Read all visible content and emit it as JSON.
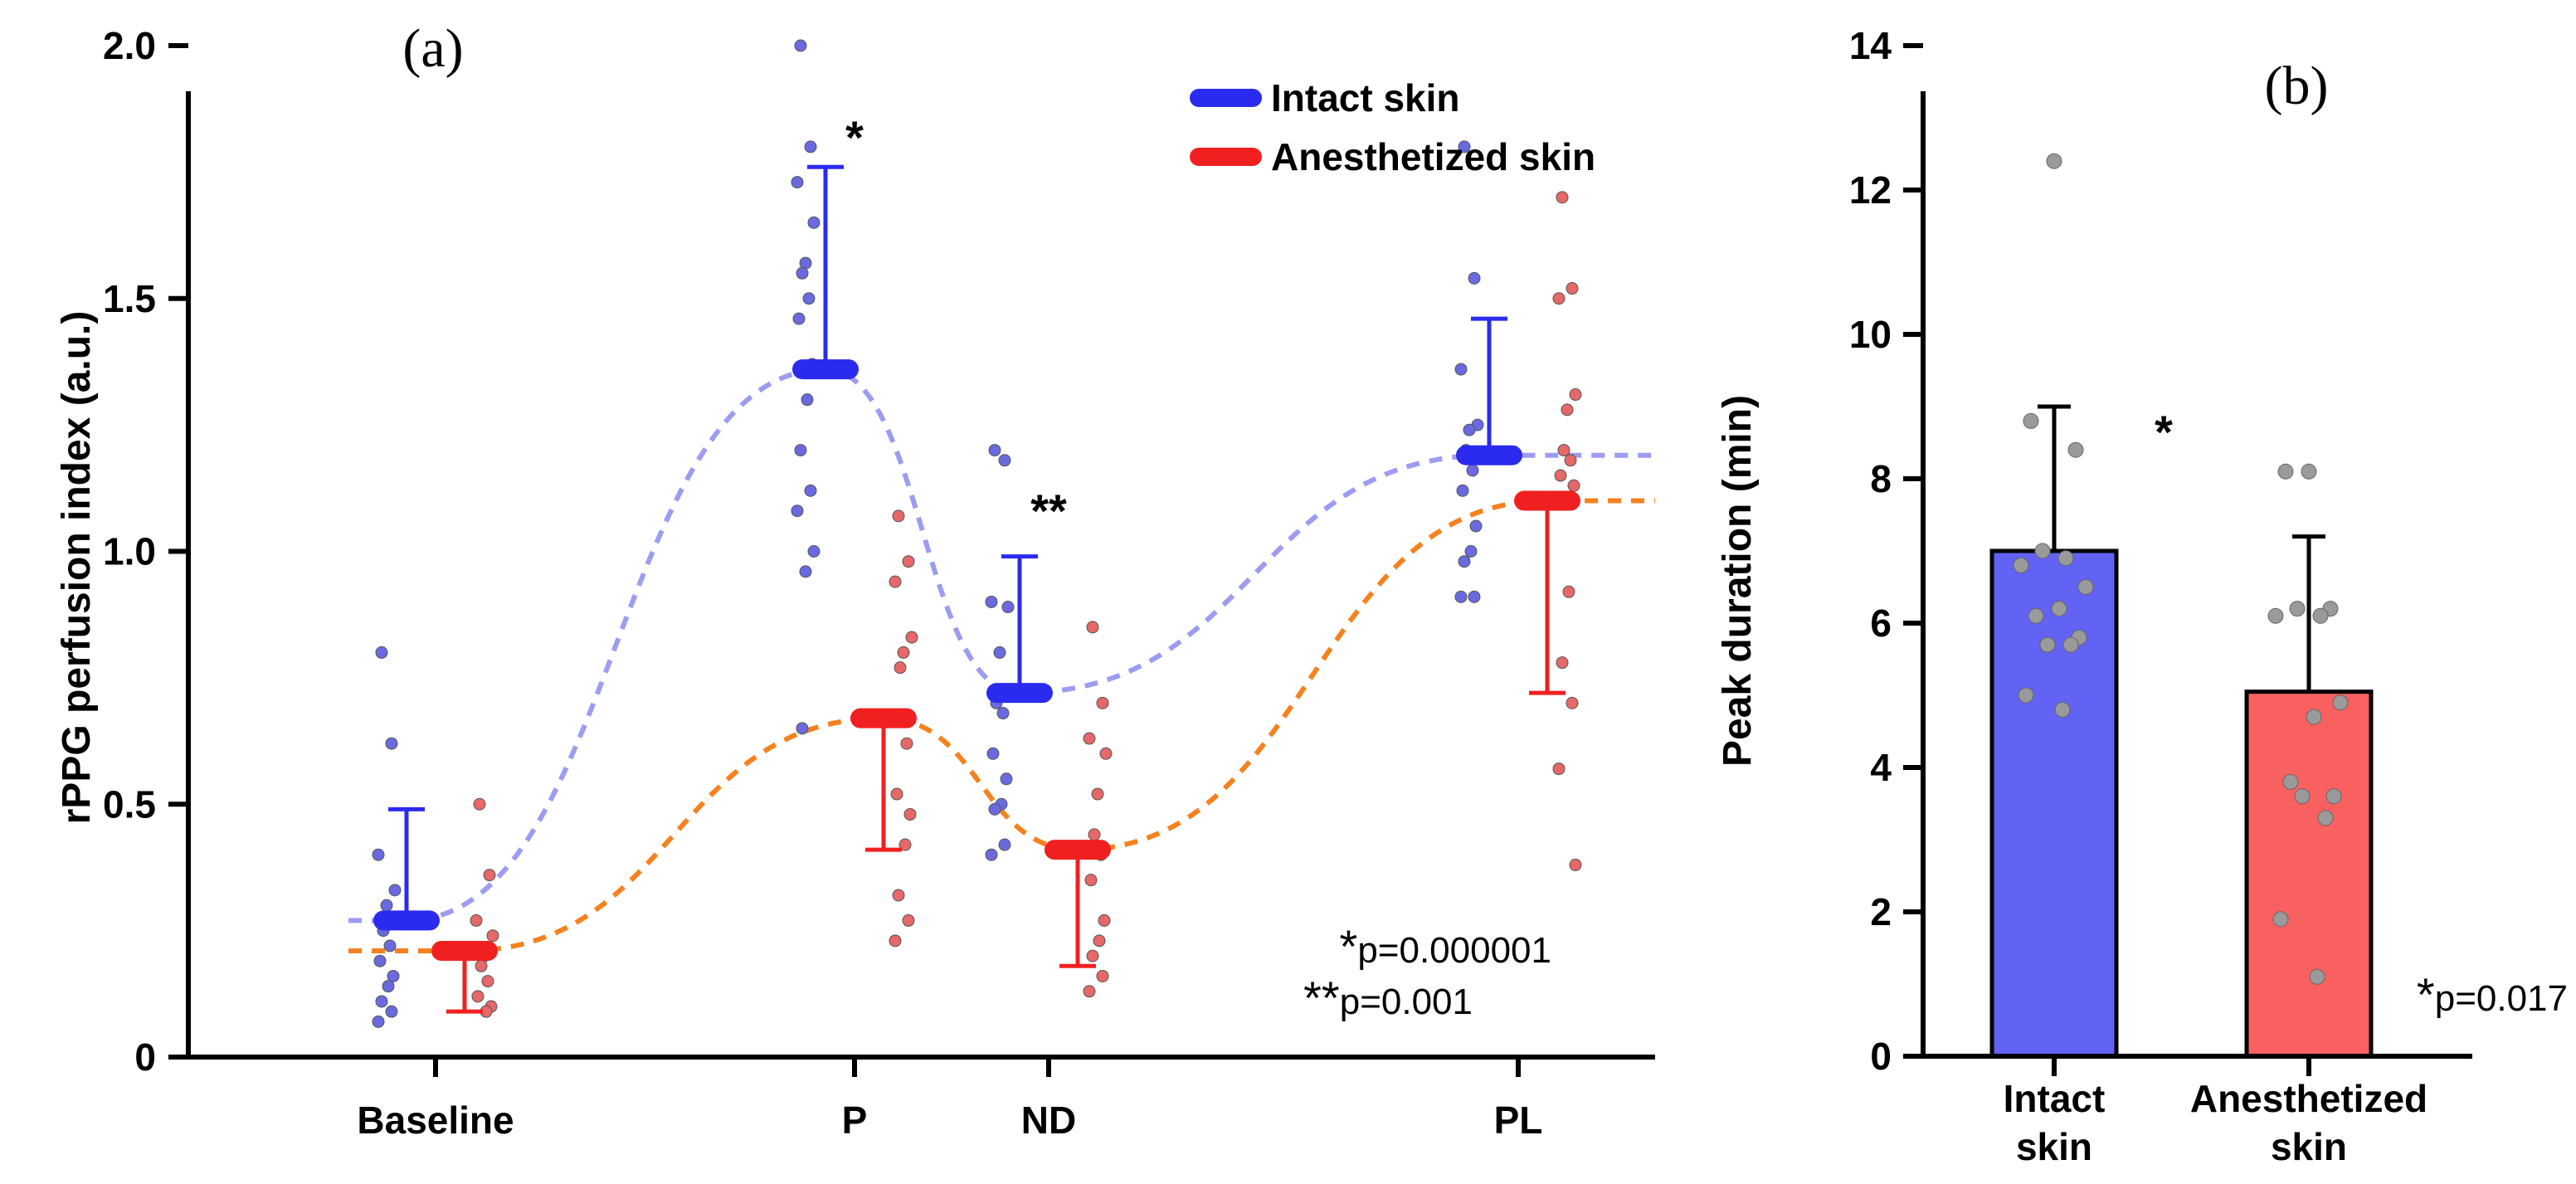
{
  "colors": {
    "intact": "#2b2bf0",
    "anesthetized": "#f02020",
    "intact_dot": "#6a6ae0",
    "anesthetized_dot": "#e66868",
    "intact_fit": "#9c9cf2",
    "anesthetized_fit": "#f5821f",
    "intact_bar": "#6262f5",
    "anesthetized_bar": "#f96161",
    "bar_dot": "#9a9a9a"
  },
  "chart_data": [
    {
      "panel": "(a)",
      "type": "scatter",
      "ylabel": "rPPG perfusion index (a.u.)",
      "ylim": [
        0,
        2.0
      ],
      "yticks": [
        "0",
        "0.5",
        "1.0",
        "1.5",
        "2.0"
      ],
      "categories": [
        "Baseline",
        "P",
        "ND",
        "PL"
      ],
      "legend": {
        "position": "top-right",
        "entries": [
          "Intact skin",
          "Anesthetized skin"
        ]
      },
      "series": [
        {
          "name": "Intact skin",
          "mean": [
            0.27,
            1.36,
            0.72,
            1.19
          ],
          "err_upper": [
            0.49,
            1.76,
            0.99,
            1.46
          ],
          "err_lower": [
            null,
            null,
            null,
            null
          ],
          "points": [
            [
              0.8,
              0.62,
              0.4,
              0.33,
              0.3,
              0.25,
              0.22,
              0.19,
              0.16,
              0.14,
              0.11,
              0.09,
              0.07
            ],
            [
              2.0,
              1.8,
              1.73,
              1.65,
              1.57,
              1.55,
              1.5,
              1.46,
              1.37,
              1.3,
              1.2,
              1.12,
              1.08,
              1.0,
              0.96,
              0.65
            ],
            [
              1.2,
              1.18,
              0.9,
              0.89,
              0.8,
              0.7,
              0.68,
              0.6,
              0.55,
              0.5,
              0.49,
              0.42,
              0.4
            ],
            [
              1.8,
              1.54,
              1.36,
              1.25,
              1.24,
              1.2,
              1.16,
              1.12,
              1.05,
              1.0,
              0.98,
              0.91,
              0.91
            ]
          ]
        },
        {
          "name": "Anesthetized skin",
          "mean": [
            0.21,
            0.67,
            0.41,
            1.1
          ],
          "err_upper": [
            null,
            null,
            null,
            null
          ],
          "err_lower": [
            0.09,
            0.41,
            0.18,
            0.72
          ],
          "points": [
            [
              0.5,
              0.36,
              0.27,
              0.24,
              0.2,
              0.18,
              0.15,
              0.12,
              0.1,
              0.09
            ],
            [
              1.07,
              0.98,
              0.94,
              0.83,
              0.8,
              0.77,
              0.62,
              0.52,
              0.48,
              0.42,
              0.32,
              0.27,
              0.23
            ],
            [
              0.85,
              0.7,
              0.63,
              0.6,
              0.52,
              0.44,
              0.4,
              0.35,
              0.27,
              0.23,
              0.2,
              0.16,
              0.13
            ],
            [
              1.7,
              1.52,
              1.5,
              1.31,
              1.28,
              1.2,
              1.18,
              1.15,
              1.13,
              0.92,
              0.78,
              0.7,
              0.57,
              0.38
            ]
          ]
        }
      ],
      "annotations": [
        {
          "text": "*",
          "category": "P",
          "y": 1.92
        },
        {
          "text": "**",
          "category": "ND",
          "y": 1.12
        }
      ],
      "p_values": [
        {
          "stars": "*",
          "text": "p=0.000001"
        },
        {
          "stars": "**",
          "text": "p=0.001"
        }
      ]
    },
    {
      "panel": "(b)",
      "type": "bar",
      "ylabel": "Peak duration (min)",
      "ylim": [
        0,
        14
      ],
      "yticks": [
        "0",
        "2",
        "4",
        "6",
        "8",
        "10",
        "12",
        "14"
      ],
      "categories": [
        "Intact skin",
        "Anesthetized skin"
      ],
      "category_lines": [
        [
          "Intact",
          "skin"
        ],
        [
          "Anesthetized",
          "skin"
        ]
      ],
      "values": [
        7.0,
        5.05
      ],
      "err_upper": [
        9.0,
        7.2
      ],
      "points": [
        [
          12.4,
          8.8,
          8.4,
          7.0,
          6.9,
          6.8,
          6.5,
          6.2,
          6.1,
          5.8,
          5.7,
          5.7,
          5.0,
          4.8
        ],
        [
          8.1,
          8.1,
          6.2,
          6.2,
          6.1,
          6.1,
          4.9,
          4.7,
          3.8,
          3.6,
          3.6,
          3.3,
          1.9,
          1.1
        ]
      ],
      "annotations": [
        {
          "text": "*",
          "y": 9.2
        }
      ],
      "p_values": [
        {
          "stars": "*",
          "text": "p=0.017"
        }
      ]
    }
  ]
}
